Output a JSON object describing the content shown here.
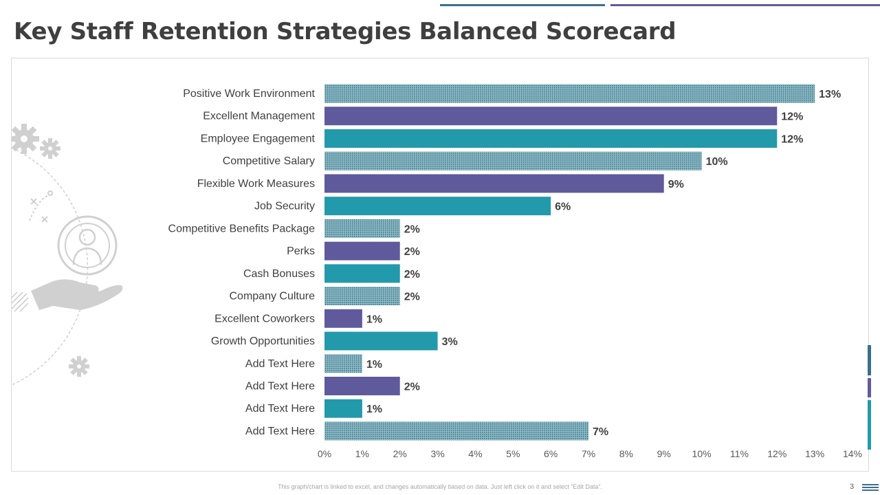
{
  "title": "Key Staff Retention Strategies Balanced Scorecard",
  "footer_note": "This graph/chart is linked to excel, and changes automatically based on data. Just left click on it and select “Edit Data”.",
  "page_number": "3",
  "colors": {
    "dotted": "#2f6f80",
    "dotted_light": "#8fbac6",
    "purple": "#5f5a9c",
    "teal": "#2399ac",
    "title": "#3f3f3f",
    "axis_text": "#595959",
    "label_text": "#404040",
    "line_a": "#3b6f8c",
    "line_b": "#5f5a9c",
    "icon_gray": "#d0d0d0"
  },
  "chart_data": {
    "type": "bar",
    "orientation": "horizontal",
    "categories": [
      "Positive Work Environment",
      "Excellent Management",
      "Employee Engagement",
      "Competitive Salary",
      "Flexible Work Measures",
      "Job Security",
      "Competitive Benefits Package",
      "Perks",
      "Cash Bonuses",
      "Company Culture",
      "Excellent Coworkers",
      "Growth Opportunities",
      "Add Text Here",
      "Add Text Here",
      "Add Text Here",
      "Add Text Here"
    ],
    "values": [
      13,
      12,
      12,
      10,
      9,
      6,
      2,
      2,
      2,
      2,
      1,
      3,
      1,
      2,
      1,
      7
    ],
    "value_labels": [
      "13%",
      "12%",
      "12%",
      "10%",
      "9%",
      "6%",
      "2%",
      "2%",
      "2%",
      "2%",
      "1%",
      "3%",
      "1%",
      "2%",
      "1%",
      "7%"
    ],
    "bar_styles": [
      "dotted",
      "purple",
      "teal",
      "dotted",
      "purple",
      "teal",
      "dotted",
      "purple",
      "teal",
      "dotted",
      "purple",
      "teal",
      "dotted",
      "purple",
      "teal",
      "dotted"
    ],
    "x_ticks": [
      "0%",
      "1%",
      "2%",
      "3%",
      "4%",
      "5%",
      "6%",
      "7%",
      "8%",
      "9%",
      "10%",
      "11%",
      "12%",
      "13%",
      "14%"
    ],
    "xlim": [
      0,
      14
    ],
    "xlabel": "",
    "ylabel": "",
    "grid": false,
    "legend": "none"
  }
}
